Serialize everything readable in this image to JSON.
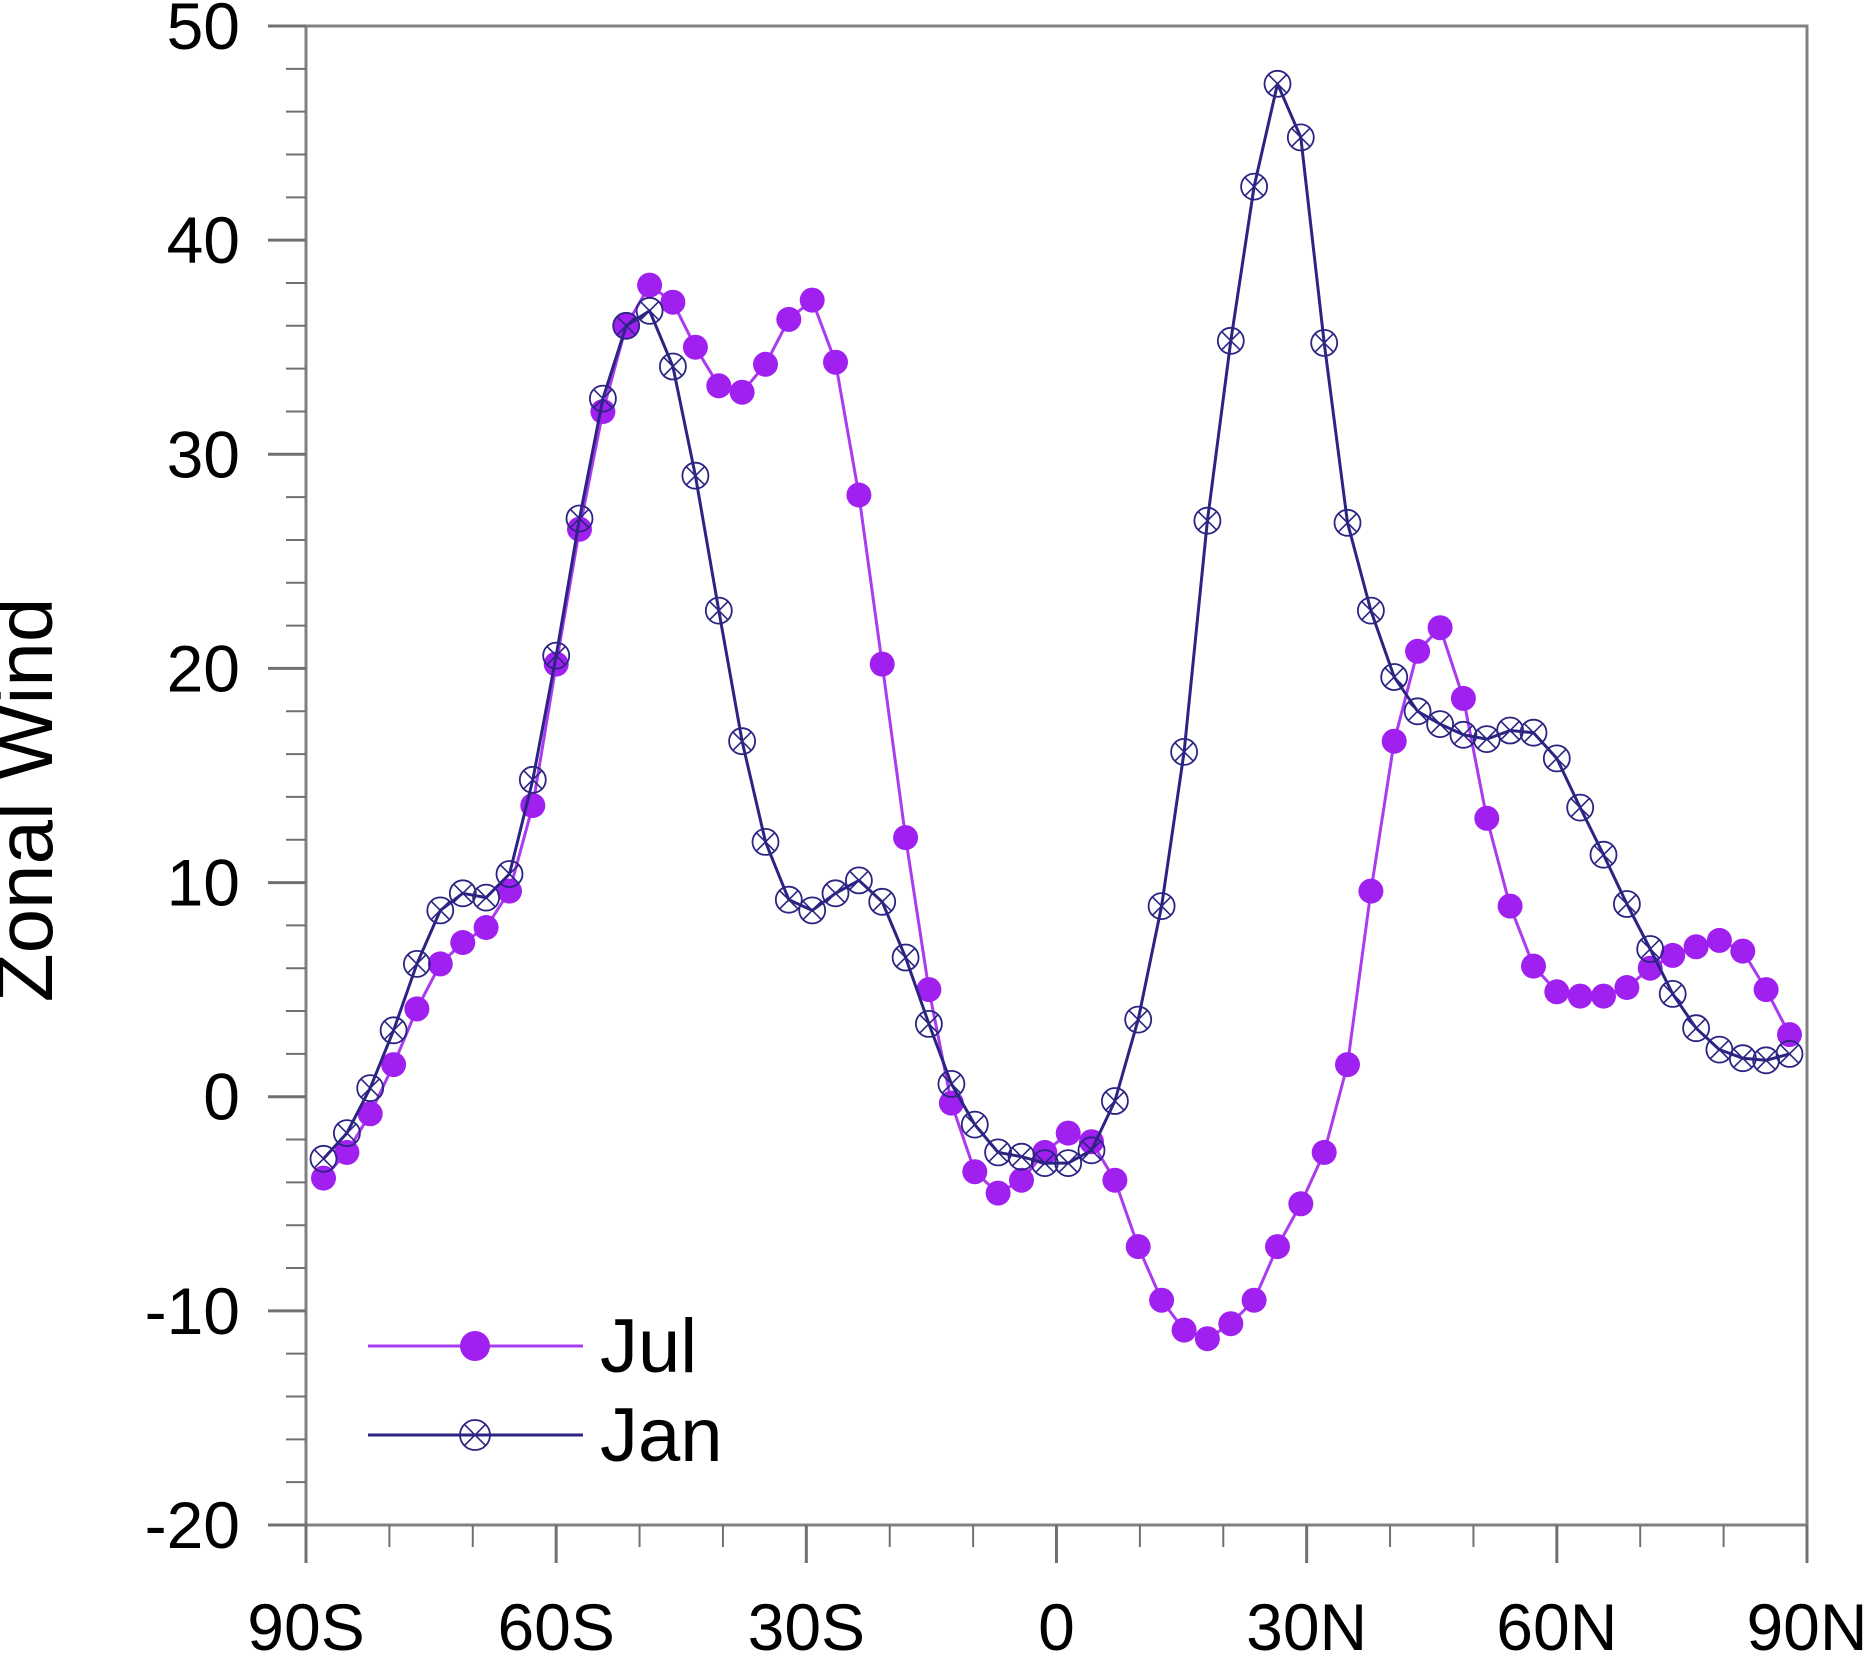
{
  "figure": {
    "background": "#ffffff"
  },
  "colors": {
    "jul_line": "#aa3bef",
    "jul_marker": "#a020f0",
    "jan_line": "#2b2483",
    "jan_marker": "#2b2483",
    "axis": "#808080",
    "tick": "#707070",
    "label_text": "#000000"
  },
  "legend": {
    "items": [
      {
        "label": "Jul",
        "series": "jul",
        "marker": "filled-circle"
      },
      {
        "label": "Jan",
        "series": "jan",
        "marker": "circle-x"
      }
    ]
  },
  "chart_data": {
    "type": "line",
    "title": "",
    "xlabel": "",
    "ylabel": "Zonal Wind",
    "xlim": [
      -90,
      90
    ],
    "ylim": [
      -20,
      50
    ],
    "grid": false,
    "legend_position": "lower-left-inside",
    "x_major_ticks": [
      -90,
      -60,
      -30,
      0,
      30,
      60,
      90
    ],
    "x_tick_labels": [
      "90S",
      "60S",
      "30S",
      "0",
      "30N",
      "60N",
      "90N"
    ],
    "x_minor_step": 10,
    "y_major_ticks": [
      -20,
      -10,
      0,
      10,
      20,
      30,
      40,
      50
    ],
    "y_tick_labels": [
      "-20",
      "-10",
      "0",
      "10",
      "20",
      "30",
      "40",
      "50"
    ],
    "y_minor_step": 2,
    "x": [
      -87.9,
      -85.1,
      -82.3,
      -79.5,
      -76.7,
      -73.9,
      -71.2,
      -68.4,
      -65.6,
      -62.8,
      -60.0,
      -57.2,
      -54.4,
      -51.6,
      -48.8,
      -46.0,
      -43.3,
      -40.5,
      -37.7,
      -34.9,
      -32.1,
      -29.3,
      -26.5,
      -23.7,
      -20.9,
      -18.1,
      -15.3,
      -12.6,
      -9.8,
      -7.0,
      -4.2,
      -1.4,
      1.4,
      4.2,
      7.0,
      9.8,
      12.6,
      15.3,
      18.1,
      20.9,
      23.7,
      26.5,
      29.3,
      32.1,
      34.9,
      37.7,
      40.5,
      43.3,
      46.0,
      48.8,
      51.6,
      54.4,
      57.2,
      60.0,
      62.8,
      65.6,
      68.4,
      71.2,
      73.9,
      76.7,
      79.5,
      82.3,
      85.1,
      87.9
    ],
    "series": [
      {
        "name": "Jul",
        "marker": "filled-circle",
        "values": [
          -3.8,
          -2.6,
          -0.8,
          1.5,
          4.1,
          6.2,
          7.2,
          7.9,
          9.6,
          13.6,
          20.2,
          26.5,
          32.0,
          36.0,
          37.9,
          37.1,
          35.0,
          33.2,
          32.9,
          34.2,
          36.3,
          37.2,
          34.3,
          28.1,
          20.2,
          12.1,
          5.0,
          -0.3,
          -3.5,
          -4.5,
          -3.9,
          -2.6,
          -1.7,
          -2.1,
          -3.9,
          -7.0,
          -9.5,
          -10.9,
          -11.3,
          -10.6,
          -9.5,
          -7.0,
          -5.0,
          -2.6,
          1.5,
          9.6,
          16.6,
          20.8,
          21.9,
          18.6,
          13.0,
          8.9,
          6.1,
          4.9,
          4.7,
          4.7,
          5.1,
          6.0,
          6.6,
          7.0,
          7.3,
          6.8,
          5.0,
          2.9
        ]
      },
      {
        "name": "Jan",
        "marker": "circle-x",
        "values": [
          -2.9,
          -1.7,
          0.4,
          3.1,
          6.2,
          8.7,
          9.5,
          9.3,
          10.4,
          14.8,
          20.6,
          27.0,
          32.6,
          36.0,
          36.7,
          34.1,
          29.0,
          22.7,
          16.6,
          11.9,
          9.2,
          8.7,
          9.5,
          10.1,
          9.1,
          6.5,
          3.4,
          0.6,
          -1.3,
          -2.6,
          -2.8,
          -3.1,
          -3.1,
          -2.5,
          -0.2,
          3.6,
          8.9,
          16.1,
          26.9,
          35.3,
          42.5,
          47.3,
          44.8,
          35.2,
          26.8,
          22.7,
          19.6,
          18.0,
          17.4,
          16.9,
          16.7,
          17.1,
          17.0,
          15.8,
          13.5,
          11.3,
          9.0,
          6.9,
          4.8,
          3.2,
          2.2,
          1.8,
          1.7,
          2.0
        ]
      }
    ]
  }
}
